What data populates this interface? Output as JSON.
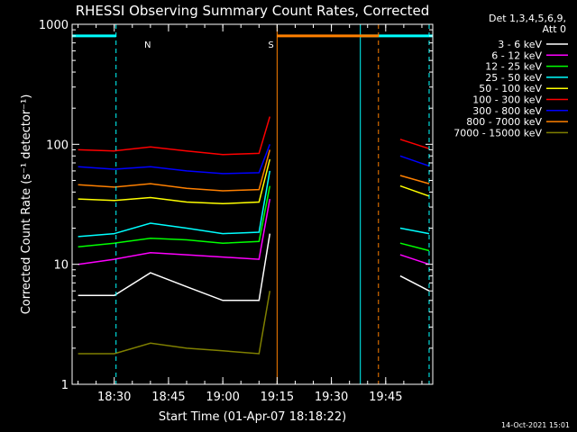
{
  "chart_data": {
    "type": "line",
    "title": "RHESSI Observing Summary Count Rates, Corrected",
    "xlabel": "Start Time (01-Apr-07 18:18:22)",
    "ylabel": "Corrected Count Rate (s⁻¹ detector⁻¹)",
    "y_scale": "log",
    "ylim": [
      1,
      1000
    ],
    "y_ticks": [
      {
        "value": 1,
        "label": "1"
      },
      {
        "value": 10,
        "label": "10"
      },
      {
        "value": 100,
        "label": "100"
      },
      {
        "value": 1000,
        "label": "1000"
      }
    ],
    "xlim": [
      "18:18:22",
      "19:58:00"
    ],
    "x_ticks": [
      {
        "time": "18:30",
        "label": "18:30"
      },
      {
        "time": "18:45",
        "label": "18:45"
      },
      {
        "time": "19:00",
        "label": "19:00"
      },
      {
        "time": "19:15",
        "label": "19:15"
      },
      {
        "time": "19:30",
        "label": "19:30"
      },
      {
        "time": "19:45",
        "label": "19:45"
      }
    ],
    "legend": {
      "placement": "right",
      "header": [
        "Det 1,3,4,5,6,9,",
        "Att 0"
      ]
    },
    "series": [
      {
        "name": "3 - 6 keV",
        "color": "#ffffff",
        "time": [
          "18:20",
          "18:30",
          "18:40",
          "18:50",
          "19:00",
          "19:10",
          "19:13",
          "19:49",
          "19:57"
        ],
        "values": [
          5.5,
          5.5,
          8.5,
          6.5,
          5.0,
          5.0,
          18,
          8,
          6
        ]
      },
      {
        "name": "6 - 12 keV",
        "color": "#ff00ff",
        "time": [
          "18:20",
          "18:30",
          "18:40",
          "18:50",
          "19:00",
          "19:10",
          "19:13",
          "19:49",
          "19:57"
        ],
        "values": [
          10,
          11,
          12.5,
          12,
          11.5,
          11,
          35,
          12,
          10
        ]
      },
      {
        "name": "12 - 25 keV",
        "color": "#00ff00",
        "time": [
          "18:20",
          "18:30",
          "18:40",
          "18:50",
          "19:00",
          "19:10",
          "19:13",
          "19:49",
          "19:57"
        ],
        "values": [
          14,
          15,
          16.5,
          16,
          15,
          15.5,
          45,
          15,
          13
        ]
      },
      {
        "name": "25 - 50 keV",
        "color": "#00ffff",
        "time": [
          "18:20",
          "18:30",
          "18:40",
          "18:50",
          "19:00",
          "19:10",
          "19:13",
          "19:49",
          "19:57"
        ],
        "values": [
          17,
          18,
          22,
          20,
          18,
          18.5,
          60,
          20,
          18
        ]
      },
      {
        "name": "50 - 100 keV",
        "color": "#ffff00",
        "time": [
          "18:20",
          "18:30",
          "18:40",
          "18:50",
          "19:00",
          "19:10",
          "19:13",
          "19:49",
          "19:57"
        ],
        "values": [
          35,
          34,
          36,
          33,
          32,
          33,
          75,
          45,
          37
        ]
      },
      {
        "name": "100 - 300 keV",
        "color": "#ff0000",
        "time": [
          "18:20",
          "18:30",
          "18:40",
          "18:50",
          "19:00",
          "19:10",
          "19:13",
          "19:49",
          "19:57"
        ],
        "values": [
          90,
          88,
          95,
          88,
          82,
          84,
          170,
          110,
          92
        ]
      },
      {
        "name": "300 - 800 keV",
        "color": "#0000ff",
        "time": [
          "18:20",
          "18:30",
          "18:40",
          "18:50",
          "19:00",
          "19:10",
          "19:13",
          "19:49",
          "19:57"
        ],
        "values": [
          65,
          62,
          65,
          60,
          57,
          58,
          100,
          80,
          66
        ]
      },
      {
        "name": "800 - 7000 keV",
        "color": "#ff8000",
        "time": [
          "18:20",
          "18:30",
          "18:40",
          "18:50",
          "19:00",
          "19:10",
          "19:13",
          "19:49",
          "19:57"
        ],
        "values": [
          46,
          44,
          47,
          43,
          41,
          42,
          90,
          55,
          47
        ]
      },
      {
        "name": "7000 - 15000 keV",
        "color": "#808000",
        "time": [
          "18:20",
          "18:30",
          "18:40",
          "18:50",
          "19:00",
          "19:10",
          "19:13"
        ],
        "values": [
          1.8,
          1.8,
          2.2,
          2.0,
          1.9,
          1.8,
          6.0
        ]
      }
    ],
    "flags": [
      {
        "label": "N",
        "color": "#00ffff",
        "level": 800,
        "intervals": [
          [
            "18:18:22",
            "18:30:30"
          ],
          [
            "19:38:00",
            "19:58:00"
          ]
        ],
        "dashed_markers": [
          "18:30:30",
          "19:57:00"
        ]
      },
      {
        "label": "S",
        "color": "#ff8000",
        "level": 800,
        "intervals": [
          [
            "19:15:00",
            "19:43:00"
          ]
        ],
        "dashed_markers": [
          "19:43:00"
        ]
      }
    ],
    "data_gap": [
      "19:15:00",
      "19:49:00"
    ],
    "grid": false
  },
  "footer_date": "14-Oct-2021 15:01"
}
